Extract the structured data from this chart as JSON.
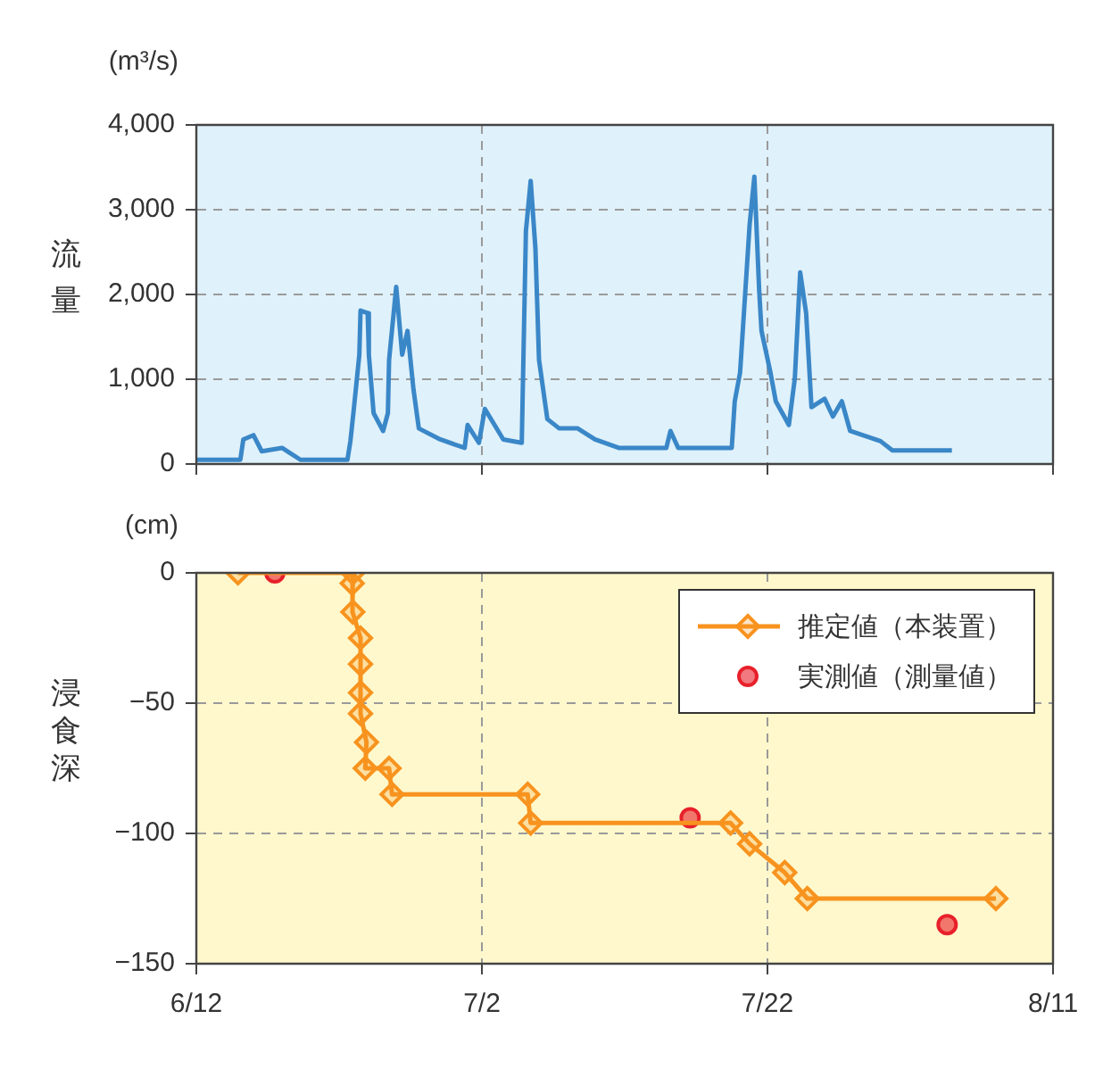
{
  "chart_data": [
    {
      "type": "line",
      "ylabel": "流量",
      "annotations": [
        "(m³/s)"
      ],
      "xlim": [
        "--06-12",
        "--08-11"
      ],
      "xticks": [
        {
          "value": "--06-12",
          "label": null
        },
        {
          "value": "--07-02",
          "label": null
        },
        {
          "value": "--07-22",
          "label": null
        },
        {
          "value": "--08-11",
          "label": null
        }
      ],
      "ylim": [
        0,
        4000
      ],
      "yticks": [
        {
          "value": 0,
          "label": "0"
        },
        {
          "value": 1000,
          "label": "1,000"
        },
        {
          "value": 2000,
          "label": "2,000"
        },
        {
          "value": 3000,
          "label": "3,000"
        },
        {
          "value": 4000,
          "label": "4,000"
        }
      ],
      "grid": true,
      "legend": false,
      "tick_labels": "y",
      "marker": "none",
      "line_style": "solid",
      "series": [
        {
          "color": "#3a87c8",
          "x": [
            "--06-12T00:00",
            "--06-15T02:00",
            "--06-15T07:00",
            "--06-16T00:00",
            "--06-16T14:00",
            "--06-18T00:00",
            "--06-19T07:00",
            "--06-22T14:00",
            "--06-22T19:00",
            "--06-23T00:00",
            "--06-23T10:00",
            "--06-23T12:00",
            "--06-24T00:00",
            "--06-24T02:00",
            "--06-24T10:00",
            "--06-25T02:00",
            "--06-25T10:00",
            "--06-25T12:00",
            "--06-26T00:00",
            "--06-26T10:00",
            "--06-26T19:00",
            "--06-27T05:00",
            "--06-27T14:00",
            "--06-29T02:00",
            "--06-30T19:00",
            "--07-01T00:00",
            "--07-01T19:00",
            "--07-02T05:00",
            "--07-03T12:00",
            "--07-04T19:00",
            "--07-05T02:00",
            "--07-05T10:00",
            "--07-05T18:00",
            "--07-06T00:00",
            "--07-06T14:00",
            "--07-07T10:00",
            "--07-08T17:00",
            "--07-09T22:00",
            "--07-11T14:00",
            "--07-14T22:00",
            "--07-15T05:00",
            "--07-15T18:00",
            "--07-19T12:00",
            "--07-19T17:00",
            "--07-20T02:00",
            "--07-20T18:00",
            "--07-21T02:00",
            "--07-21T10:00",
            "--07-21T14:00",
            "--07-22T05:00",
            "--07-22T14:00",
            "--07-23T12:00",
            "--07-23T22:00",
            "--07-24T07:00",
            "--07-24T17:00",
            "--07-25T02:00",
            "--07-26T00:00",
            "--07-26T14:00",
            "--07-27T05:00",
            "--07-27T19:00",
            "--07-29T22:00",
            "--07-30T18:00",
            "--08-03T22:00"
          ],
          "values": [
            50,
            50,
            290,
            340,
            150,
            190,
            50,
            50,
            270,
            600,
            1290,
            1810,
            1780,
            1290,
            600,
            390,
            600,
            1230,
            2090,
            1290,
            1570,
            880,
            420,
            290,
            190,
            460,
            250,
            650,
            290,
            250,
            2750,
            3340,
            2540,
            1230,
            530,
            420,
            420,
            290,
            190,
            190,
            390,
            190,
            190,
            740,
            1080,
            2820,
            3390,
            2060,
            1570,
            1080,
            740,
            460,
            1010,
            2260,
            1780,
            670,
            770,
            560,
            740,
            390,
            270,
            160,
            160
          ]
        }
      ]
    },
    {
      "type": "line",
      "ylabel": "浸食深",
      "annotations": [
        "(cm)"
      ],
      "xlim": [
        "--06-12",
        "--08-11"
      ],
      "xticks": [
        {
          "value": "--06-12",
          "label": "6/12"
        },
        {
          "value": "--07-02",
          "label": "7/2"
        },
        {
          "value": "--07-22",
          "label": "7/22"
        },
        {
          "value": "--08-11",
          "label": "8/11"
        }
      ],
      "ylim": [
        -150,
        0
      ],
      "yticks": [
        {
          "value": -150,
          "label": "−150"
        },
        {
          "value": -100,
          "label": "−100"
        },
        {
          "value": -50,
          "label": "−50"
        },
        {
          "value": 0,
          "label": "0"
        }
      ],
      "grid": true,
      "legend": "top right",
      "line_style": "solid",
      "series": [
        {
          "name": "推定値（本装置）",
          "type": "line",
          "marker": "diamond",
          "color": "#f7931e",
          "x": [
            "--06-14T22:00",
            "--06-22T23:00",
            "--06-22T22:00",
            "--06-22T23:00",
            "--06-23T12:00",
            "--06-23T12:00",
            "--06-23T12:00",
            "--06-23T12:00",
            "--06-23T22:00",
            "--06-23T20:00",
            "--06-25T12:00",
            "--06-25T17:00",
            "--07-05T05:00",
            "--07-05T10:00",
            "--07-19T10:00",
            "--07-20T18:00",
            "--07-23T05:00",
            "--07-24T19:00",
            "--08-07T00:00"
          ],
          "values": [
            0,
            0,
            -4,
            -15,
            -25,
            -35,
            -46,
            -54,
            -65,
            -75,
            -75,
            -85,
            -85,
            -96,
            -96,
            -104,
            -115,
            -125,
            -125
          ]
        },
        {
          "name": "実測値（測量値）",
          "type": "scatter",
          "marker": "circle",
          "color": "#e8202a",
          "x": [
            "--06-17T12:00",
            "--07-16T14:00",
            "--08-03T14:00"
          ],
          "values": [
            0,
            -94,
            -135
          ]
        }
      ]
    }
  ]
}
